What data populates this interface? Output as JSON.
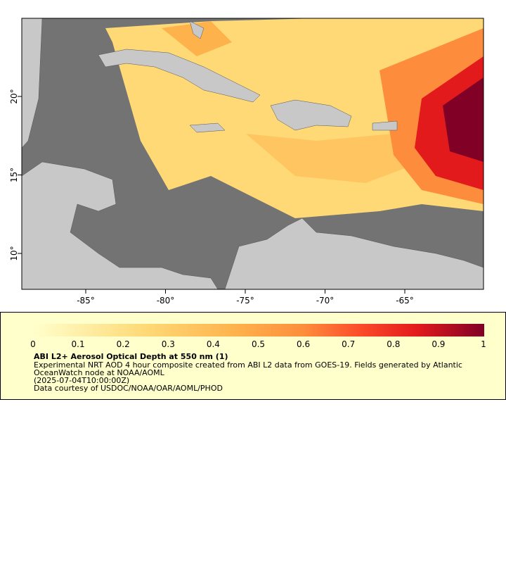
{
  "map": {
    "lon_ticks": [
      "-85°",
      "-80°",
      "-75°",
      "-70°",
      "-65°"
    ],
    "lat_ticks": [
      "20°",
      "15°",
      "10°"
    ]
  },
  "legend": {
    "ticks": [
      "0",
      "0.1",
      "0.2",
      "0.3",
      "0.4",
      "0.5",
      "0.6",
      "0.7",
      "0.8",
      "0.9",
      "1"
    ],
    "title": "ABI L2+ Aerosol Optical Depth at 550 nm (1)",
    "lines": [
      "Experimental NRT AOD 4 hour composite created from ABI L2 data from GOES-19. Fields generated by Atlantic",
      "OceanWatch node at NOAA/AOML",
      "(2025-07-04T10:00:00Z)",
      "Data courtesy of USDOC/NOAA/OAR/AOML/PHOD"
    ]
  }
}
